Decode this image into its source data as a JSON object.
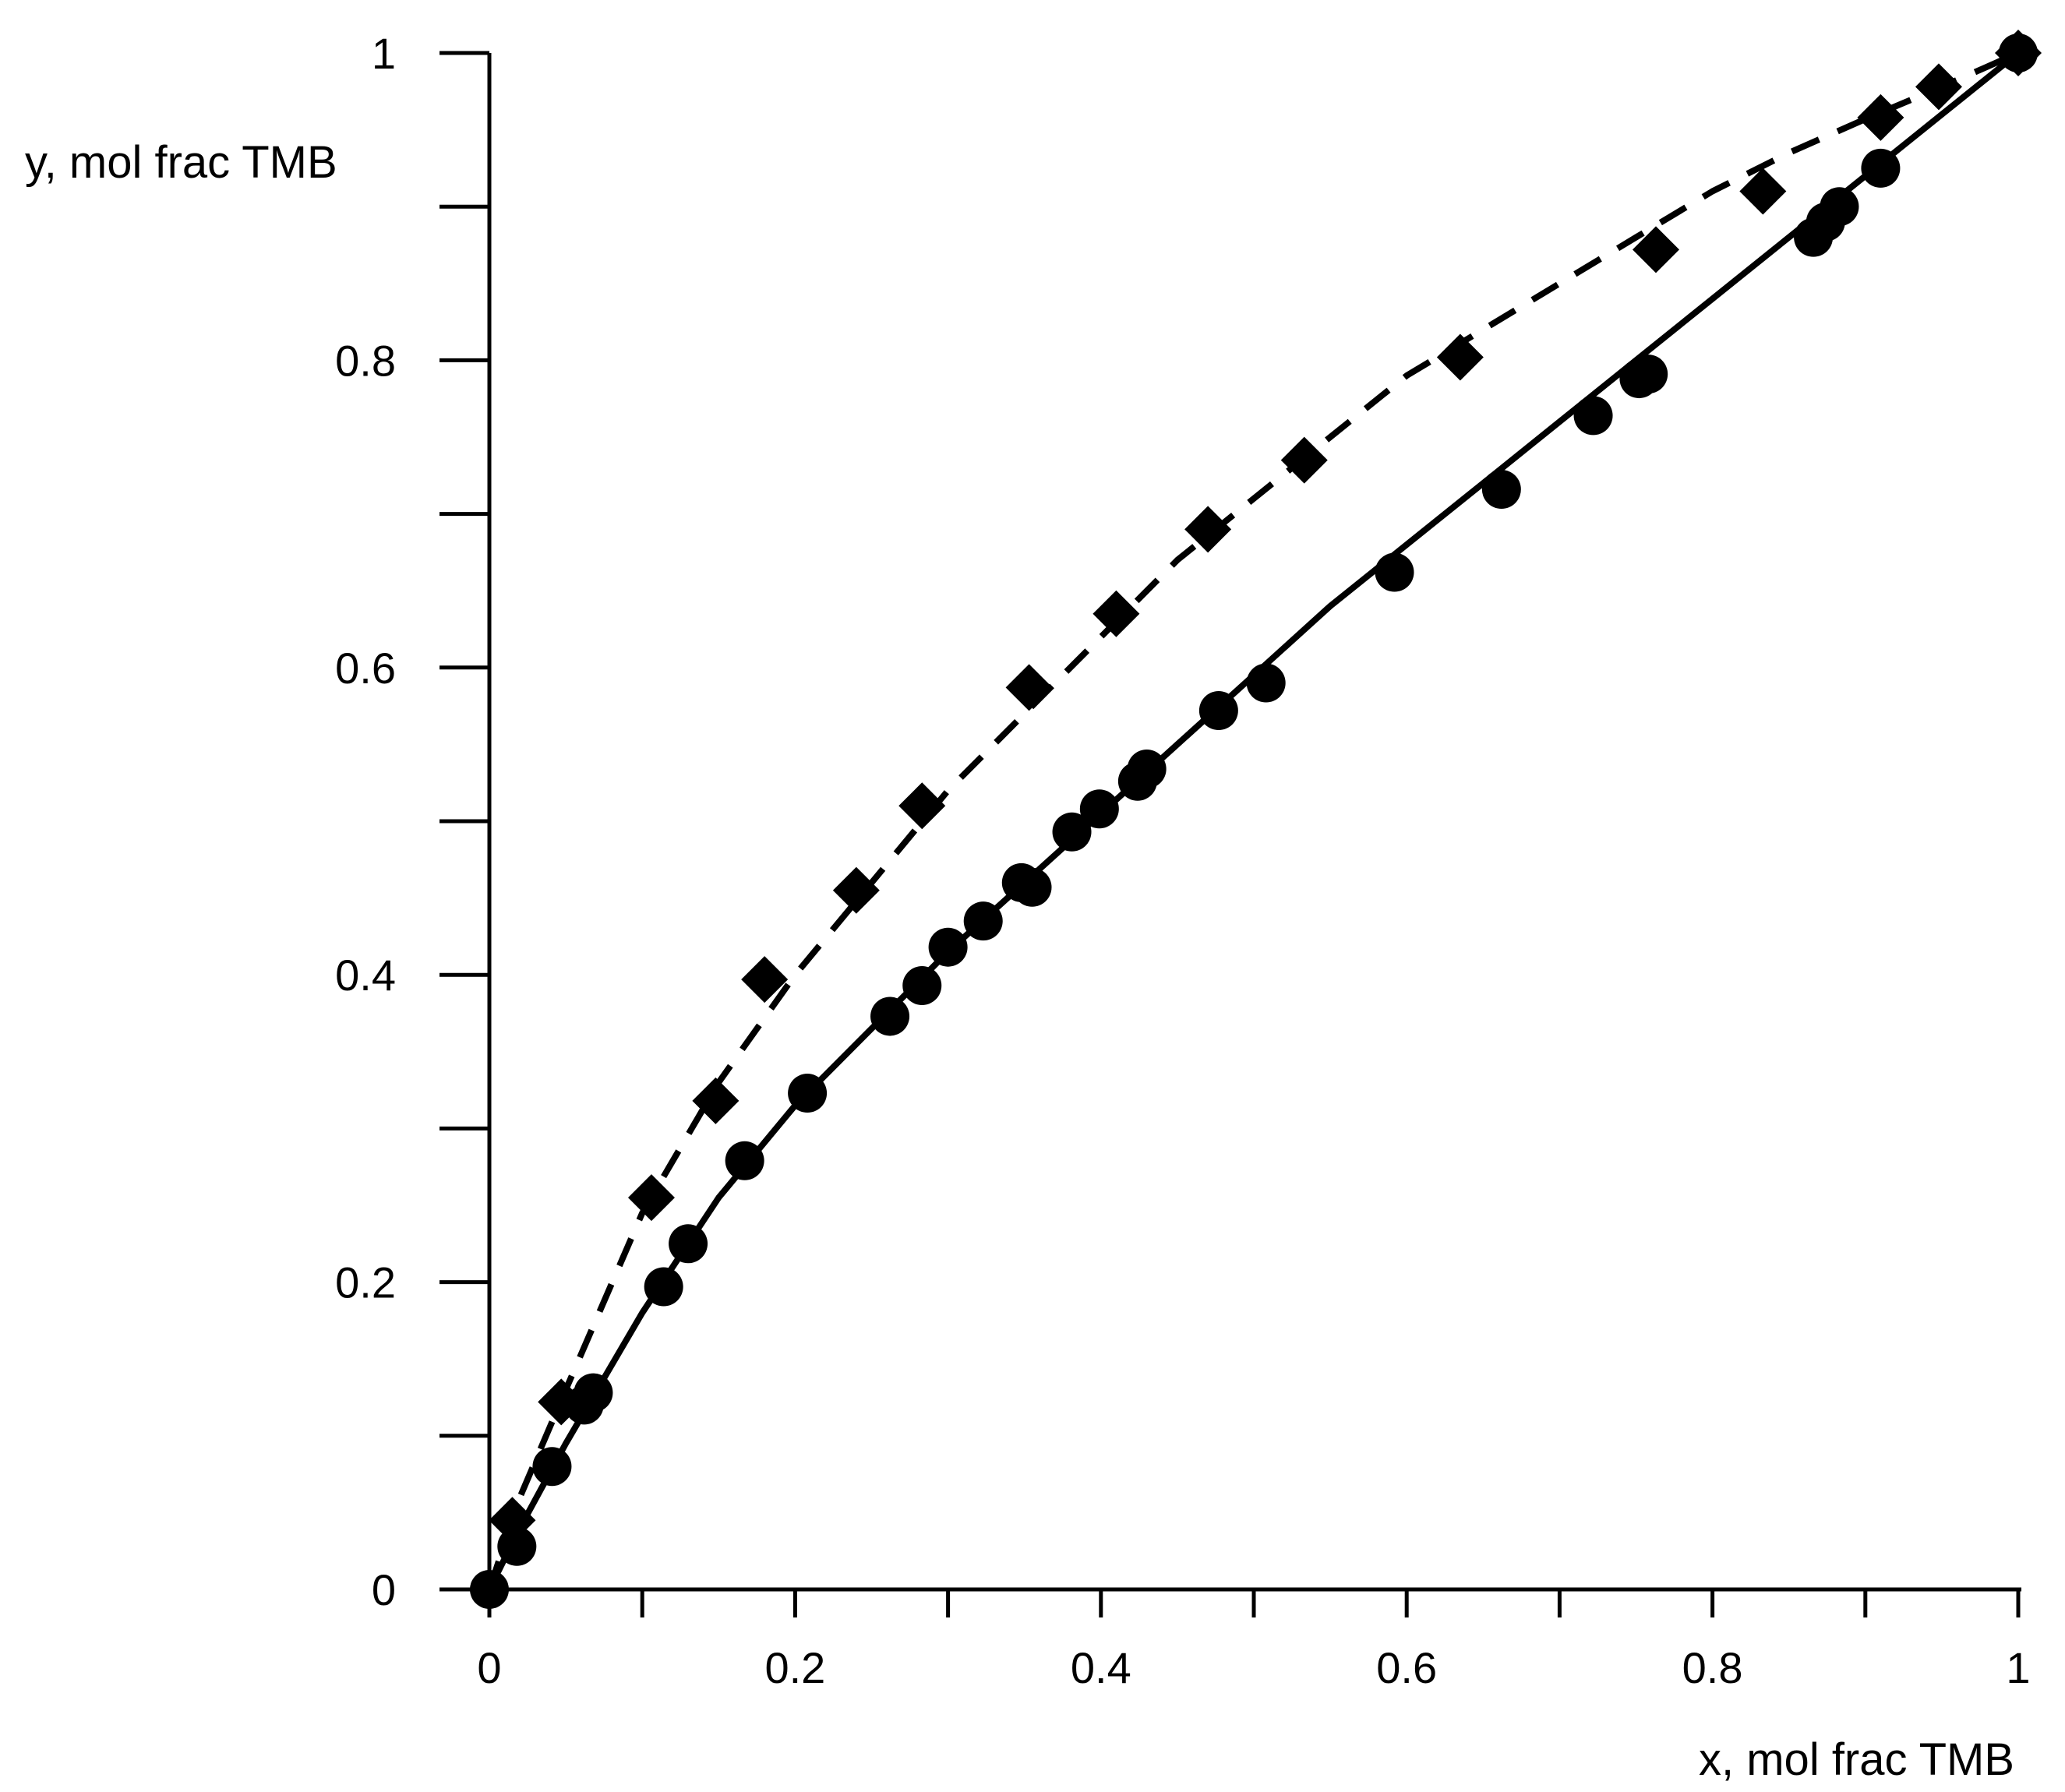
{
  "chart_data": {
    "type": "scatter",
    "title": "",
    "xlabel": "x, mol frac TMB",
    "ylabel": "y, mol frac TMB",
    "xlim": [
      0,
      1
    ],
    "ylim": [
      0,
      1
    ],
    "x_ticks": [
      "0",
      "0.2",
      "0.4",
      "0.6",
      "0.8",
      "1"
    ],
    "y_ticks": [
      "0",
      "0.2",
      "0.4",
      "0.6",
      "0.8",
      "1"
    ],
    "x_minor_step": 0.1,
    "y_minor_step": 0.1,
    "grid": false,
    "legend": "none",
    "series": [
      {
        "marker": "diamond",
        "color": "#000000",
        "points": [
          [
            0.015,
            0.045
          ],
          [
            0.047,
            0.122
          ],
          [
            0.106,
            0.255
          ],
          [
            0.148,
            0.318
          ],
          [
            0.18,
            0.397
          ],
          [
            0.24,
            0.455
          ],
          [
            0.283,
            0.51
          ],
          [
            0.353,
            0.587
          ],
          [
            0.41,
            0.635
          ],
          [
            0.47,
            0.69
          ],
          [
            0.533,
            0.735
          ],
          [
            0.635,
            0.802
          ],
          [
            0.763,
            0.872
          ],
          [
            0.833,
            0.91
          ],
          [
            0.91,
            0.958
          ],
          [
            0.948,
            0.978
          ],
          [
            1.0,
            1.0
          ]
        ]
      },
      {
        "marker": "circle",
        "color": "#000000",
        "points": [
          [
            0.0,
            0.0
          ],
          [
            0.018,
            0.028
          ],
          [
            0.041,
            0.08
          ],
          [
            0.062,
            0.12
          ],
          [
            0.068,
            0.128
          ],
          [
            0.114,
            0.197
          ],
          [
            0.13,
            0.225
          ],
          [
            0.167,
            0.279
          ],
          [
            0.208,
            0.323
          ],
          [
            0.262,
            0.373
          ],
          [
            0.283,
            0.393
          ],
          [
            0.3,
            0.418
          ],
          [
            0.323,
            0.435
          ],
          [
            0.348,
            0.46
          ],
          [
            0.355,
            0.457
          ],
          [
            0.381,
            0.493
          ],
          [
            0.399,
            0.508
          ],
          [
            0.424,
            0.526
          ],
          [
            0.43,
            0.534
          ],
          [
            0.477,
            0.572
          ],
          [
            0.508,
            0.59
          ],
          [
            0.592,
            0.662
          ],
          [
            0.662,
            0.716
          ],
          [
            0.722,
            0.764
          ],
          [
            0.752,
            0.788
          ],
          [
            0.758,
            0.791
          ],
          [
            0.866,
            0.88
          ],
          [
            0.874,
            0.89
          ],
          [
            0.883,
            0.9
          ],
          [
            0.91,
            0.925
          ],
          [
            1.0,
            1.0
          ]
        ]
      }
    ],
    "curves": [
      {
        "style": "dashed",
        "color": "#000000",
        "points": [
          [
            0.0,
            0.0
          ],
          [
            0.02,
            0.06
          ],
          [
            0.05,
            0.13
          ],
          [
            0.1,
            0.245
          ],
          [
            0.15,
            0.33
          ],
          [
            0.2,
            0.4
          ],
          [
            0.25,
            0.46
          ],
          [
            0.3,
            0.52
          ],
          [
            0.35,
            0.57
          ],
          [
            0.4,
            0.62
          ],
          [
            0.45,
            0.67
          ],
          [
            0.5,
            0.71
          ],
          [
            0.55,
            0.75
          ],
          [
            0.6,
            0.79
          ],
          [
            0.65,
            0.82
          ],
          [
            0.7,
            0.85
          ],
          [
            0.75,
            0.88
          ],
          [
            0.8,
            0.91
          ],
          [
            0.85,
            0.935
          ],
          [
            0.9,
            0.957
          ],
          [
            0.95,
            0.978
          ],
          [
            1.0,
            1.0
          ]
        ]
      },
      {
        "style": "solid",
        "color": "#000000",
        "points": [
          [
            0.0,
            0.0
          ],
          [
            0.02,
            0.04
          ],
          [
            0.05,
            0.095
          ],
          [
            0.1,
            0.18
          ],
          [
            0.15,
            0.255
          ],
          [
            0.2,
            0.315
          ],
          [
            0.25,
            0.365
          ],
          [
            0.3,
            0.415
          ],
          [
            0.35,
            0.46
          ],
          [
            0.4,
            0.505
          ],
          [
            0.45,
            0.55
          ],
          [
            0.5,
            0.595
          ],
          [
            0.55,
            0.64
          ],
          [
            0.6,
            0.68
          ],
          [
            0.65,
            0.72
          ],
          [
            0.7,
            0.76
          ],
          [
            0.75,
            0.8
          ],
          [
            0.8,
            0.84
          ],
          [
            0.85,
            0.88
          ],
          [
            0.9,
            0.92
          ],
          [
            0.95,
            0.96
          ],
          [
            1.0,
            1.0
          ]
        ]
      }
    ]
  }
}
